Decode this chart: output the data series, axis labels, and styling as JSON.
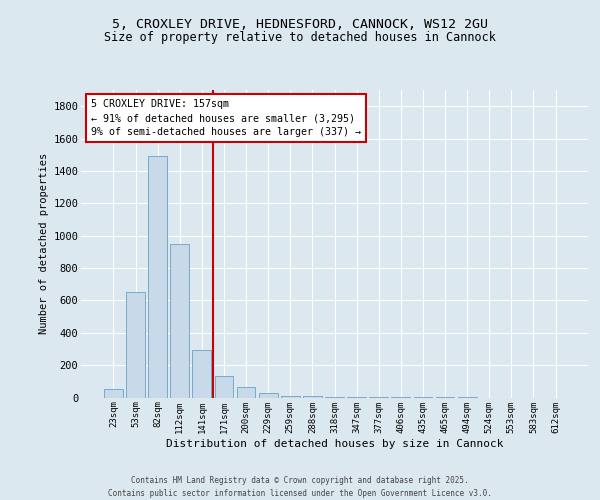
{
  "title_line1": "5, CROXLEY DRIVE, HEDNESFORD, CANNOCK, WS12 2GU",
  "title_line2": "Size of property relative to detached houses in Cannock",
  "xlabel": "Distribution of detached houses by size in Cannock",
  "ylabel": "Number of detached properties",
  "bin_labels": [
    "23sqm",
    "53sqm",
    "82sqm",
    "112sqm",
    "141sqm",
    "171sqm",
    "200sqm",
    "229sqm",
    "259sqm",
    "288sqm",
    "318sqm",
    "347sqm",
    "377sqm",
    "406sqm",
    "435sqm",
    "465sqm",
    "494sqm",
    "524sqm",
    "553sqm",
    "583sqm",
    "612sqm"
  ],
  "bar_values": [
    50,
    650,
    1490,
    950,
    295,
    130,
    65,
    25,
    10,
    8,
    5,
    3,
    2,
    2,
    1,
    1,
    1,
    0,
    0,
    0,
    0
  ],
  "bar_color": "#c8d9ea",
  "bar_edge_color": "#7aaac8",
  "red_line_index": 4.5,
  "annotation_title": "5 CROXLEY DRIVE: 157sqm",
  "annotation_line2": "← 91% of detached houses are smaller (3,295)",
  "annotation_line3": "9% of semi-detached houses are larger (337) →",
  "annotation_box_color": "#ffffff",
  "annotation_box_edge": "#cc0000",
  "ylim": [
    0,
    1900
  ],
  "yticks": [
    0,
    200,
    400,
    600,
    800,
    1000,
    1200,
    1400,
    1600,
    1800
  ],
  "fig_bg_color": "#dce8f0",
  "axes_bg_color": "#dce8f0",
  "grid_color": "#ffffff",
  "footer_line1": "Contains HM Land Registry data © Crown copyright and database right 2025.",
  "footer_line2": "Contains public sector information licensed under the Open Government Licence v3.0."
}
